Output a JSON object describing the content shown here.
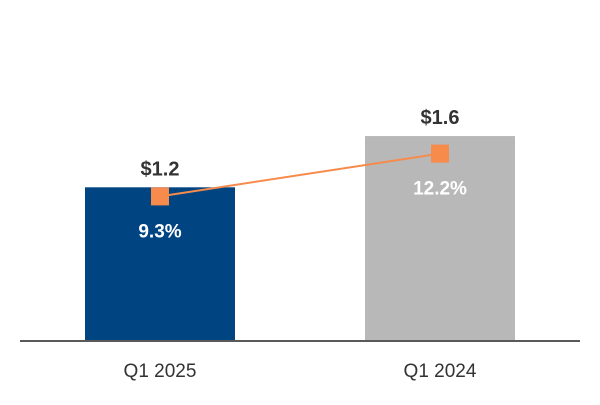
{
  "chart_data": {
    "type": "bar",
    "categories": [
      "Q1 2025",
      "Q1 2024"
    ],
    "series": [
      {
        "type": "bar",
        "values": [
          1.2,
          1.6
        ],
        "value_labels": [
          "$1.2",
          "$1.6"
        ],
        "colors": [
          "#004481",
          "#B8B8B8"
        ]
      },
      {
        "type": "line",
        "values": [
          9.3,
          12.2
        ],
        "value_labels": [
          "9.3%",
          "12.2%"
        ],
        "color": "#F68B4C",
        "marker": "square"
      }
    ],
    "bar_ylim": [
      0,
      2.35
    ],
    "line_ylim": [
      -0.5,
      19.9
    ],
    "grid": false,
    "legend": "none",
    "axis_color": "#595959",
    "label_color": "#333333",
    "inner_label_color": "#FFFFFF"
  }
}
